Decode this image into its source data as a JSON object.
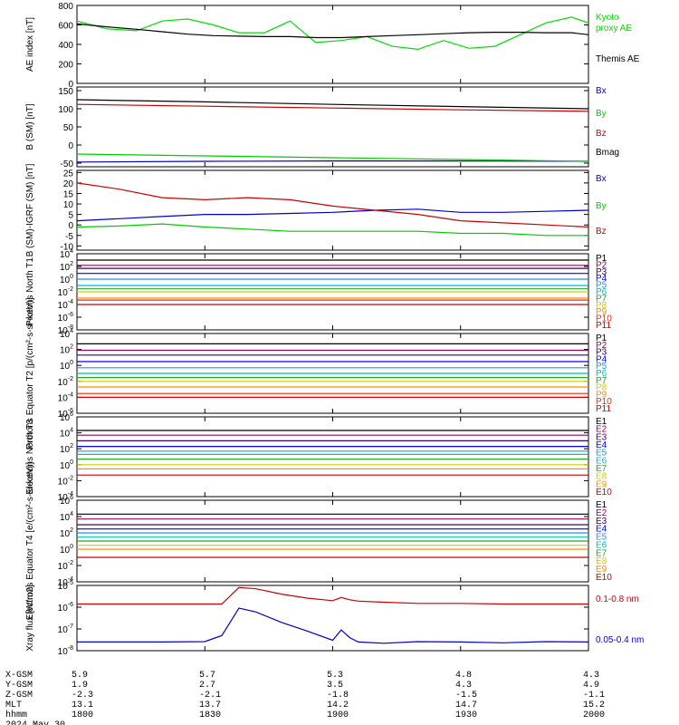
{
  "chart_data": [
    {
      "type": "line",
      "ylabel": "AE index [nT]",
      "ylim": [
        0,
        800
      ],
      "yticks": [
        "800",
        "600",
        "400",
        "200",
        "0"
      ],
      "x": [
        0,
        7,
        14,
        20,
        26,
        32,
        38,
        44,
        50,
        56,
        62,
        68,
        74,
        80,
        86,
        92,
        98,
        104,
        110,
        116,
        120
      ],
      "series": [
        {
          "name": "Kyoto proxy AE",
          "color": "#00dd00",
          "values": [
            640,
            560,
            540,
            640,
            660,
            600,
            520,
            520,
            640,
            420,
            440,
            480,
            380,
            350,
            440,
            360,
            380,
            500,
            620,
            680,
            620
          ]
        },
        {
          "name": "Themis AE",
          "color": "#000000",
          "values": [
            610,
            580,
            555,
            530,
            505,
            490,
            485,
            480,
            480,
            470,
            470,
            480,
            490,
            500,
            510,
            520,
            525,
            525,
            520,
            520,
            500
          ]
        }
      ]
    },
    {
      "type": "line",
      "ylabel": "B (SM) [nT]",
      "ylim": [
        -60,
        160
      ],
      "yticks": [
        "150",
        "100",
        "50",
        "0",
        "-50"
      ],
      "x": [
        0,
        30,
        60,
        90,
        120
      ],
      "series": [
        {
          "name": "Bx",
          "color": "#0000cc",
          "values": [
            -47,
            -45,
            -44,
            -44,
            -45
          ]
        },
        {
          "name": "By",
          "color": "#00cc00",
          "values": [
            -25,
            -30,
            -35,
            -40,
            -45
          ]
        },
        {
          "name": "Bz",
          "color": "#cc0000",
          "values": [
            112,
            107,
            102,
            97,
            93
          ]
        },
        {
          "name": "Bmag",
          "color": "#000000",
          "values": [
            125,
            119,
            112,
            106,
            100
          ]
        }
      ]
    },
    {
      "type": "line",
      "ylabel": "B (SM)-IGRF (SM) [nT]",
      "ylim": [
        -12,
        26
      ],
      "yticks": [
        "25",
        "20",
        "15",
        "10",
        "5",
        "0",
        "-5",
        "-10"
      ],
      "x": [
        0,
        10,
        20,
        30,
        40,
        50,
        60,
        70,
        80,
        90,
        100,
        110,
        120
      ],
      "series": [
        {
          "name": "Bx",
          "color": "#0000cc",
          "values": [
            2,
            3,
            4,
            5,
            5,
            5.5,
            6,
            7,
            7.5,
            6,
            6,
            6.5,
            7
          ]
        },
        {
          "name": "By",
          "color": "#00cc00",
          "values": [
            -1,
            -0.5,
            0.5,
            -1,
            -2,
            -3,
            -3,
            -3,
            -3,
            -4,
            -4,
            -5,
            -5
          ]
        },
        {
          "name": "Bz",
          "color": "#cc0000",
          "values": [
            20,
            17,
            13,
            12,
            13,
            12,
            9,
            7,
            5,
            2,
            1,
            0,
            -1
          ]
        }
      ]
    },
    {
      "type": "line",
      "ylabel": "Protons North T1",
      "log": true,
      "ylim": [
        1e-08,
        10000.0
      ],
      "yticks": [
        "10^4",
        "10^2",
        "10^0",
        "10^-2",
        "10^-4",
        "10^-6",
        "10^-8"
      ],
      "x": [
        0,
        120
      ],
      "series": [
        {
          "name": "P1",
          "color": "#000000",
          "values": [
            1000,
            1000
          ]
        },
        {
          "name": "P2",
          "color": "#8b0a50",
          "values": [
            150,
            150
          ]
        },
        {
          "name": "P3",
          "color": "#3a006e",
          "values": [
            50,
            50
          ]
        },
        {
          "name": "P4",
          "color": "#0000ff",
          "values": [
            8,
            8
          ]
        },
        {
          "name": "P5",
          "color": "#1e90ff",
          "values": [
            1,
            1
          ]
        },
        {
          "name": "P6",
          "color": "#00bcbc",
          "values": [
            0.1,
            0.1
          ]
        },
        {
          "name": "P7",
          "color": "#22aa22",
          "values": [
            0.03,
            0.03
          ]
        },
        {
          "name": "P8",
          "color": "#cccc00",
          "values": [
            0.01,
            0.01
          ]
        },
        {
          "name": "P9",
          "color": "#ff8c00",
          "values": [
            0.001,
            0.001
          ]
        },
        {
          "name": "P10",
          "color": "#ff2200",
          "values": [
            0.0005,
            0.0005
          ]
        },
        {
          "name": "P11",
          "color": "#cc0000",
          "values": [
            0.0001,
            0.0001
          ]
        }
      ]
    },
    {
      "type": "line",
      "ylabel": "Protons Equator T2 [p/(cm²-s-sr-keV)]",
      "log": true,
      "ylim": [
        1e-06,
        10000.0
      ],
      "yticks": [
        "10^4",
        "10^2",
        "10^0",
        "10^-2",
        "10^-4",
        "10^-6"
      ],
      "x": [
        0,
        120
      ],
      "series": [
        {
          "name": "P1",
          "color": "#000000",
          "values": [
            500,
            500
          ]
        },
        {
          "name": "P2",
          "color": "#8b0a50",
          "values": [
            80,
            80
          ]
        },
        {
          "name": "P3",
          "color": "#3a006e",
          "values": [
            20,
            20
          ]
        },
        {
          "name": "P4",
          "color": "#0000ff",
          "values": [
            3,
            3
          ]
        },
        {
          "name": "P5",
          "color": "#1e90ff",
          "values": [
            0.5,
            0.5
          ]
        },
        {
          "name": "P6",
          "color": "#00bcbc",
          "values": [
            0.1,
            0.1
          ]
        },
        {
          "name": "P7",
          "color": "#22aa22",
          "values": [
            0.03,
            0.03
          ]
        },
        {
          "name": "P8",
          "color": "#cccc00",
          "values": [
            0.01,
            0.01
          ]
        },
        {
          "name": "P9",
          "color": "#ff8c00",
          "values": [
            0.002,
            0.002
          ]
        },
        {
          "name": "P10",
          "color": "#ff2200",
          "values": [
            0.0003,
            0.0003
          ]
        },
        {
          "name": "P11",
          "color": "#cc0000",
          "values": [
            0.0001,
            0.0001
          ]
        }
      ]
    },
    {
      "type": "line",
      "ylabel": "Electrons North T3",
      "log": true,
      "ylim": [
        0.0001,
        1000000.0
      ],
      "yticks": [
        "10^6",
        "10^4",
        "10^2",
        "10^0",
        "10^-2",
        "10^-4"
      ],
      "x": [
        0,
        120
      ],
      "series": [
        {
          "name": "E1",
          "color": "#000000",
          "values": [
            20000,
            20000
          ]
        },
        {
          "name": "E2",
          "color": "#8b0a50",
          "values": [
            5000,
            5000
          ]
        },
        {
          "name": "E3",
          "color": "#3a006e",
          "values": [
            1000,
            1000
          ]
        },
        {
          "name": "E4",
          "color": "#0000ff",
          "values": [
            200,
            200
          ]
        },
        {
          "name": "E5",
          "color": "#1e90ff",
          "values": [
            50,
            50
          ]
        },
        {
          "name": "E6",
          "color": "#00bcbc",
          "values": [
            20,
            20
          ]
        },
        {
          "name": "E7",
          "color": "#22aa22",
          "values": [
            5,
            5
          ]
        },
        {
          "name": "E8",
          "color": "#cccc00",
          "values": [
            1,
            1
          ]
        },
        {
          "name": "E9",
          "color": "#ff8c00",
          "values": [
            0.3,
            0.3
          ]
        },
        {
          "name": "E10",
          "color": "#cc0000",
          "values": [
            0.05,
            0.05
          ]
        }
      ]
    },
    {
      "type": "line",
      "ylabel": "Electrons Equator T4 [e/(cm²-s-sr-keV)]",
      "log": true,
      "ylim": [
        0.0001,
        1000000.0
      ],
      "yticks": [
        "10^6",
        "10^4",
        "10^2",
        "10^0",
        "10^-2",
        "10^-4"
      ],
      "x": [
        0,
        120
      ],
      "series": [
        {
          "name": "E1",
          "color": "#000000",
          "values": [
            20000,
            20000
          ]
        },
        {
          "name": "E2",
          "color": "#8b0a50",
          "values": [
            5000,
            5000
          ]
        },
        {
          "name": "E3",
          "color": "#3a006e",
          "values": [
            1000,
            1000
          ]
        },
        {
          "name": "E4",
          "color": "#0000ff",
          "values": [
            300,
            300
          ]
        },
        {
          "name": "E5",
          "color": "#1e90ff",
          "values": [
            100,
            100
          ]
        },
        {
          "name": "E6",
          "color": "#00bcbc",
          "values": [
            30,
            30
          ]
        },
        {
          "name": "E7",
          "color": "#22aa22",
          "values": [
            10,
            10
          ]
        },
        {
          "name": "E8",
          "color": "#cccc00",
          "values": [
            3,
            3
          ]
        },
        {
          "name": "E9",
          "color": "#ff8c00",
          "values": [
            1,
            1
          ]
        },
        {
          "name": "E10",
          "color": "#cc0000",
          "values": [
            0.1,
            0.1
          ]
        }
      ]
    },
    {
      "type": "line",
      "ylabel": "Xray flux [W/m2]",
      "log": true,
      "ylim": [
        1e-08,
        1e-05
      ],
      "yticks": [
        "10^-5",
        "10^-6",
        "10^-7",
        "10^-8"
      ],
      "x": [
        0,
        10,
        20,
        30,
        34,
        38,
        42,
        48,
        54,
        60,
        62,
        64,
        66,
        72,
        80,
        90,
        100,
        110,
        120
      ],
      "series": [
        {
          "name": "0.1-0.8 nm",
          "color": "#cc0000",
          "values": [
            1.4e-06,
            1.4e-06,
            1.4e-06,
            1.4e-06,
            1.4e-06,
            8e-06,
            7e-06,
            4e-06,
            2.6e-06,
            2e-06,
            2.8e-06,
            2.2e-06,
            1.9e-06,
            1.7e-06,
            1.5e-06,
            1.5e-06,
            1.4e-06,
            1.4e-06,
            1.4e-06
          ]
        },
        {
          "name": "0.05-0.4 nm",
          "color": "#0000cc",
          "values": [
            2.5e-08,
            2.5e-08,
            2.5e-08,
            2.6e-08,
            5e-08,
            9e-07,
            6e-07,
            2e-07,
            8e-08,
            3e-08,
            9e-08,
            4e-08,
            2.5e-08,
            2.2e-08,
            2.6e-08,
            2.5e-08,
            2.3e-08,
            2.6e-08,
            2.5e-08
          ]
        }
      ]
    }
  ],
  "orbit": {
    "labels": [
      "X-GSM",
      "Y-GSM",
      "Z-GSM",
      "MLT",
      "hhmm"
    ],
    "date": "2024 May 30",
    "columns": [
      [
        "5.9",
        "1.9",
        "-2.3",
        "13.1",
        "1800"
      ],
      [
        "5.7",
        "2.7",
        "-2.1",
        "13.7",
        "1830"
      ],
      [
        "5.3",
        "3.5",
        "-1.8",
        "14.2",
        "1900"
      ],
      [
        "4.8",
        "4.3",
        "-1.5",
        "14.7",
        "1930"
      ],
      [
        "4.3",
        "4.9",
        "-1.1",
        "15.2",
        "2000"
      ]
    ]
  }
}
